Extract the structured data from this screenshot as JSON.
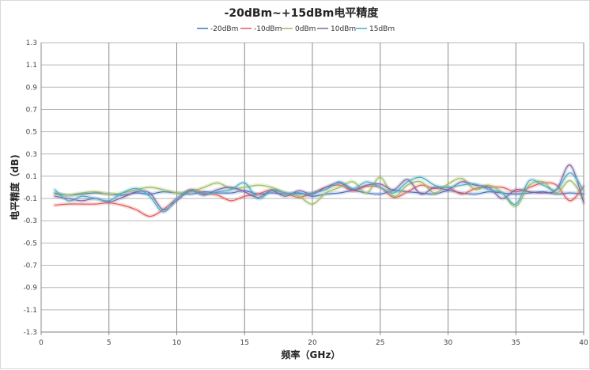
{
  "chart_data": {
    "type": "line",
    "title": "-20dBm~+15dBm电平精度",
    "xlabel": "频率（GHz）",
    "ylabel": "电平精度（dB)",
    "xlim": [
      0,
      40
    ],
    "ylim": [
      -1.3,
      1.3
    ],
    "x_ticks": [
      "0",
      "5",
      "10",
      "15",
      "20",
      "25",
      "30",
      "35",
      "40"
    ],
    "y_ticks": [
      "1.3",
      "1.1",
      "0.9",
      "0.7",
      "0.5",
      "0.3",
      "0.1",
      "-0.1",
      "-0.3",
      "-0.5",
      "-0.7",
      "-0.9",
      "-1.1",
      "-1.3"
    ],
    "grid": true,
    "legend_position": "top-center",
    "series": [
      {
        "name": "-20dBm",
        "color": "#4472c4",
        "x": [
          1,
          2,
          3,
          4,
          5,
          6,
          7,
          8,
          9,
          10,
          11,
          12,
          13,
          14,
          15,
          16,
          17,
          18,
          19,
          20,
          21,
          22,
          23,
          24,
          25,
          26,
          27,
          28,
          29,
          30,
          31,
          32,
          33,
          34,
          35,
          36,
          37,
          38,
          39,
          40
        ],
        "y": [
          -0.05,
          -0.07,
          -0.06,
          -0.05,
          -0.06,
          -0.07,
          -0.05,
          -0.06,
          -0.04,
          -0.05,
          -0.06,
          -0.04,
          -0.05,
          -0.05,
          -0.03,
          -0.06,
          -0.05,
          -0.06,
          -0.05,
          -0.08,
          -0.06,
          -0.05,
          -0.03,
          -0.05,
          -0.06,
          -0.03,
          -0.04,
          -0.05,
          -0.06,
          -0.03,
          -0.05,
          -0.06,
          -0.04,
          -0.05,
          -0.06,
          -0.05,
          -0.04,
          -0.06,
          -0.05,
          -0.06
        ]
      },
      {
        "name": "-10dBm",
        "color": "#e05a5a",
        "x": [
          1,
          2,
          3,
          4,
          5,
          6,
          7,
          8,
          9,
          10,
          11,
          12,
          13,
          14,
          15,
          16,
          17,
          18,
          19,
          20,
          21,
          22,
          23,
          24,
          25,
          26,
          27,
          28,
          29,
          30,
          31,
          32,
          33,
          34,
          35,
          36,
          37,
          38,
          39,
          40
        ],
        "y": [
          -0.16,
          -0.15,
          -0.15,
          -0.15,
          -0.14,
          -0.16,
          -0.2,
          -0.26,
          -0.2,
          -0.1,
          -0.02,
          -0.05,
          -0.07,
          -0.12,
          -0.08,
          -0.06,
          -0.02,
          -0.05,
          -0.09,
          -0.05,
          0.0,
          0.02,
          -0.03,
          0.01,
          0.0,
          -0.09,
          -0.04,
          0.02,
          -0.01,
          0.0,
          -0.06,
          -0.01,
          0.0,
          0.0,
          -0.04,
          0.0,
          0.04,
          0.02,
          -0.12,
          0.01
        ]
      },
      {
        "name": "0dBm",
        "color": "#9bbb59",
        "x": [
          1,
          2,
          3,
          4,
          5,
          6,
          7,
          8,
          9,
          10,
          11,
          12,
          13,
          14,
          15,
          16,
          17,
          18,
          19,
          20,
          21,
          22,
          23,
          24,
          25,
          26,
          27,
          28,
          29,
          30,
          31,
          32,
          33,
          34,
          35,
          36,
          37,
          38,
          39,
          40
        ],
        "y": [
          -0.06,
          -0.07,
          -0.05,
          -0.04,
          -0.06,
          -0.05,
          -0.02,
          0.0,
          -0.02,
          -0.05,
          -0.04,
          0.0,
          0.04,
          -0.01,
          0.0,
          0.02,
          0.0,
          -0.05,
          -0.08,
          -0.15,
          -0.05,
          0.0,
          0.05,
          -0.05,
          0.09,
          -0.08,
          0.02,
          0.05,
          -0.05,
          0.03,
          0.08,
          -0.02,
          0.02,
          -0.05,
          -0.17,
          0.02,
          0.05,
          -0.05,
          0.06,
          -0.1
        ]
      },
      {
        "name": "10dBm",
        "color": "#8064a2",
        "x": [
          1,
          2,
          3,
          4,
          5,
          6,
          7,
          8,
          9,
          10,
          11,
          12,
          13,
          14,
          15,
          16,
          17,
          18,
          19,
          20,
          21,
          22,
          23,
          24,
          25,
          26,
          27,
          28,
          29,
          30,
          31,
          32,
          33,
          34,
          35,
          36,
          37,
          38,
          39,
          40
        ],
        "y": [
          -0.08,
          -0.1,
          -0.12,
          -0.1,
          -0.13,
          -0.09,
          -0.04,
          -0.05,
          -0.2,
          -0.12,
          -0.03,
          -0.07,
          -0.02,
          0.0,
          -0.04,
          -0.09,
          -0.03,
          -0.08,
          -0.03,
          -0.06,
          0.0,
          0.04,
          -0.02,
          0.02,
          0.03,
          -0.02,
          0.07,
          -0.06,
          0.0,
          -0.02,
          0.05,
          0.02,
          0.0,
          -0.1,
          -0.02,
          -0.04,
          -0.05,
          -0.02,
          0.2,
          -0.14
        ]
      },
      {
        "name": "15dBm",
        "color": "#4bacc6",
        "x": [
          1,
          2,
          3,
          4,
          5,
          6,
          7,
          8,
          9,
          10,
          11,
          12,
          13,
          14,
          15,
          16,
          17,
          18,
          19,
          20,
          21,
          22,
          23,
          24,
          25,
          26,
          27,
          28,
          29,
          30,
          31,
          32,
          33,
          34,
          35,
          36,
          37,
          38,
          39,
          40
        ],
        "y": [
          -0.02,
          -0.12,
          -0.08,
          -0.1,
          -0.12,
          -0.05,
          -0.01,
          -0.08,
          -0.22,
          -0.1,
          -0.03,
          -0.06,
          -0.04,
          -0.02,
          0.04,
          -0.1,
          -0.03,
          -0.05,
          -0.06,
          -0.05,
          -0.02,
          0.05,
          -0.01,
          0.05,
          0.0,
          -0.05,
          0.05,
          0.09,
          0.02,
          0.0,
          0.02,
          0.03,
          -0.02,
          -0.05,
          -0.15,
          0.06,
          0.02,
          -0.02,
          0.13,
          -0.03
        ]
      }
    ]
  }
}
